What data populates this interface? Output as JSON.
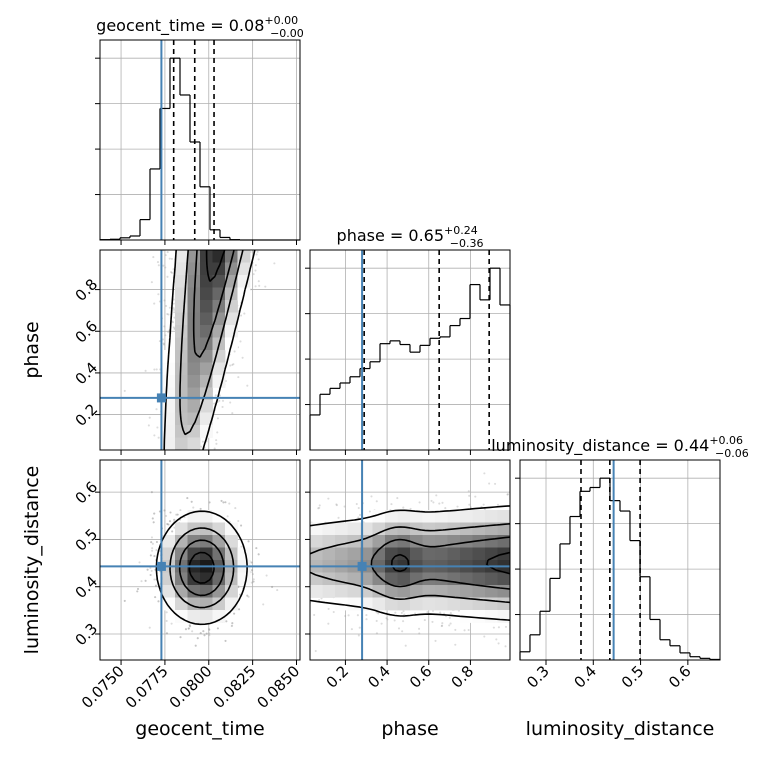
{
  "chart_data": {
    "type": "corner",
    "parameters": [
      "geocent_time",
      "phase",
      "luminosity_distance"
    ],
    "truths": [
      0.0773,
      0.28,
      0.443
    ],
    "colors": {
      "truth": "#4682b4",
      "hist": "#000000",
      "grid": "#b0b0b0",
      "points": "#9a9a9a"
    },
    "grid": true,
    "ranges": {
      "geocent_time": [
        0.0738,
        0.0852
      ],
      "phase": [
        0.03,
        0.99
      ],
      "luminosity_distance": [
        0.245,
        0.668
      ]
    },
    "titles": {
      "geocent_time": {
        "name": "geocent_time",
        "value": "0.08",
        "plus": "+0.00",
        "minus": "−0.00"
      },
      "phase": {
        "name": "phase",
        "value": "0.65",
        "plus": "+0.24",
        "minus": "−0.36"
      },
      "luminosity_distance": {
        "name": "luminosity_distance",
        "value": "0.44",
        "plus": "+0.06",
        "minus": "−0.06"
      }
    },
    "xlabels": [
      "geocent_time",
      "phase",
      "luminosity_distance"
    ],
    "ylabels": [
      "phase",
      "luminosity_distance"
    ],
    "ticks": {
      "geocent_time": [
        "0.0750",
        "0.0775",
        "0.0800",
        "0.0825",
        "0.0850"
      ],
      "phase": [
        "0.2",
        "0.4",
        "0.6",
        "0.8"
      ],
      "luminosity_distance": [
        "0.3",
        "0.4",
        "0.5",
        "0.6"
      ]
    },
    "tick_values": {
      "geocent_time": [
        0.075,
        0.0775,
        0.08,
        0.0825,
        0.085
      ],
      "phase": [
        0.2,
        0.4,
        0.6,
        0.8
      ],
      "luminosity_distance": [
        0.3,
        0.4,
        0.5,
        0.6
      ]
    },
    "quantiles": {
      "geocent_time": [
        0.078,
        0.0792,
        0.0803
      ],
      "phase": [
        0.29,
        0.65,
        0.89
      ],
      "luminosity_distance": [
        0.374,
        0.435,
        0.499
      ]
    },
    "histograms": {
      "geocent_time": {
        "edges": [
          0.0738,
          0.07437,
          0.07494,
          0.07551,
          0.07608,
          0.07665,
          0.07722,
          0.07779,
          0.07836,
          0.07893,
          0.0795,
          0.08007,
          0.08064,
          0.08121,
          0.08178,
          0.08235,
          0.08292,
          0.08349,
          0.08406,
          0.08463,
          0.0852
        ],
        "counts": [
          1,
          2,
          6,
          11,
          56,
          195,
          361,
          499,
          398,
          269,
          146,
          28,
          7,
          1,
          0,
          0,
          0,
          0,
          0,
          0
        ]
      },
      "phase": {
        "edges": [
          0.03,
          0.078,
          0.126,
          0.174,
          0.222,
          0.27,
          0.318,
          0.366,
          0.414,
          0.462,
          0.51,
          0.558,
          0.606,
          0.654,
          0.702,
          0.75,
          0.798,
          0.846,
          0.894,
          0.942,
          0.99
        ],
        "counts": [
          124,
          197,
          218,
          237,
          259,
          288,
          312,
          376,
          386,
          373,
          346,
          370,
          395,
          400,
          440,
          465,
          585,
          531,
          643,
          513
        ]
      },
      "luminosity_distance": {
        "edges": [
          0.245,
          0.2661,
          0.2873,
          0.3084,
          0.3296,
          0.3507,
          0.3719,
          0.393,
          0.4142,
          0.4353,
          0.4565,
          0.4776,
          0.4988,
          0.5199,
          0.5411,
          0.5622,
          0.5834,
          0.6045,
          0.6257,
          0.6468,
          0.668
        ],
        "counts": [
          15,
          46,
          89,
          149,
          212,
          262,
          308,
          315,
          332,
          291,
          272,
          218,
          152,
          74,
          37,
          26,
          13,
          6,
          3,
          1
        ]
      }
    }
  }
}
